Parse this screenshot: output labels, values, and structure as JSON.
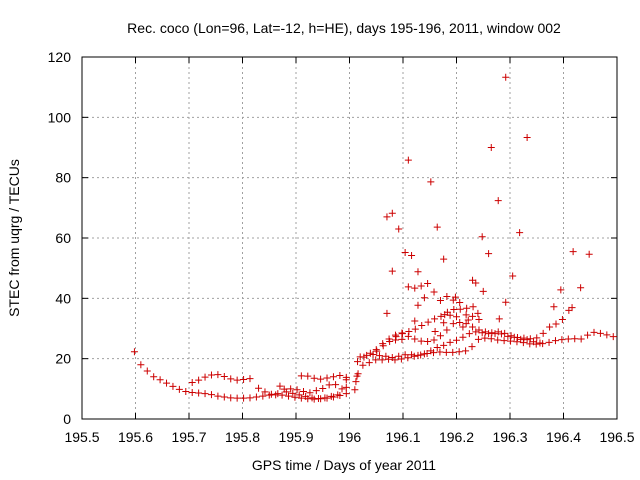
{
  "chart_data": {
    "type": "scatter",
    "title": "Rec. coco (Lon=96, Lat=-12, h=HE), days 195-196, 2011, window 002",
    "xlabel": "GPS time / Days of year 2011",
    "ylabel": "STEC from uqrg / TECUs",
    "xlim": [
      195.5,
      196.5
    ],
    "ylim": [
      0,
      120
    ],
    "xticks": [
      195.5,
      195.6,
      195.7,
      195.8,
      195.9,
      196,
      196.1,
      196.2,
      196.3,
      196.4,
      196.5
    ],
    "xtick_labels": [
      "195.5",
      "195.6",
      "195.7",
      "195.8",
      "195.9",
      "196",
      "196.1",
      "196.2",
      "196.3",
      "196.4",
      "196.5"
    ],
    "yticks": [
      0,
      20,
      40,
      60,
      80,
      100,
      120
    ],
    "ytick_labels": [
      "0",
      "20",
      "40",
      "60",
      "80",
      "100",
      "120"
    ],
    "grid": true,
    "marker": "+",
    "color": "#cc0000",
    "series": [
      {
        "name": "STEC",
        "points": [
          [
            195.598,
            22.3
          ],
          [
            195.61,
            18.0
          ],
          [
            195.622,
            15.9
          ],
          [
            195.634,
            14.0
          ],
          [
            195.646,
            13.0
          ],
          [
            195.658,
            11.9
          ],
          [
            195.67,
            10.8
          ],
          [
            195.682,
            9.8
          ],
          [
            195.694,
            9.1
          ],
          [
            195.706,
            8.8
          ],
          [
            195.718,
            8.6
          ],
          [
            195.73,
            8.4
          ],
          [
            195.742,
            8.1
          ],
          [
            195.754,
            7.6
          ],
          [
            195.766,
            7.3
          ],
          [
            195.778,
            7.0
          ],
          [
            195.79,
            6.9
          ],
          [
            195.802,
            6.9
          ],
          [
            195.814,
            7.0
          ],
          [
            195.826,
            7.3
          ],
          [
            195.838,
            7.6
          ],
          [
            195.85,
            7.9
          ],
          [
            195.862,
            8.0
          ],
          [
            195.874,
            7.9
          ],
          [
            195.886,
            7.6
          ],
          [
            195.898,
            7.2
          ],
          [
            195.91,
            6.9
          ],
          [
            195.922,
            6.7
          ],
          [
            195.934,
            6.6
          ],
          [
            195.946,
            6.7
          ],
          [
            195.958,
            6.9
          ],
          [
            195.97,
            7.3
          ],
          [
            195.982,
            7.8
          ],
          [
            195.706,
            12.1
          ],
          [
            195.718,
            12.9
          ],
          [
            195.73,
            13.9
          ],
          [
            195.742,
            14.6
          ],
          [
            195.754,
            14.7
          ],
          [
            195.766,
            14.1
          ],
          [
            195.778,
            13.3
          ],
          [
            195.79,
            12.9
          ],
          [
            195.802,
            13.1
          ],
          [
            195.814,
            13.4
          ],
          [
            195.83,
            10.2
          ],
          [
            195.842,
            9.0
          ],
          [
            195.854,
            8.2
          ],
          [
            195.866,
            8.4
          ],
          [
            195.878,
            9.9
          ],
          [
            195.89,
            10.0
          ],
          [
            195.902,
            9.7
          ],
          [
            195.914,
            9.1
          ],
          [
            195.926,
            8.7
          ],
          [
            195.938,
            9.4
          ],
          [
            195.95,
            10.1
          ],
          [
            195.962,
            11.3
          ],
          [
            195.974,
            11.4
          ],
          [
            195.986,
            10.0
          ],
          [
            195.87,
            10.9
          ],
          [
            195.882,
            9.0
          ],
          [
            195.894,
            8.5
          ],
          [
            195.906,
            8.0
          ],
          [
            195.918,
            7.5
          ],
          [
            195.93,
            7.0
          ],
          [
            195.942,
            6.8
          ],
          [
            195.954,
            7.0
          ],
          [
            195.966,
            7.5
          ],
          [
            195.978,
            8.0
          ],
          [
            195.91,
            14.3
          ],
          [
            195.922,
            14.2
          ],
          [
            195.934,
            13.5
          ],
          [
            195.946,
            13.2
          ],
          [
            195.958,
            13.6
          ],
          [
            195.97,
            14.0
          ],
          [
            195.982,
            14.4
          ],
          [
            195.994,
            13.8
          ],
          [
            195.994,
            13.0
          ],
          [
            195.994,
            10.5
          ],
          [
            195.994,
            8.4
          ],
          [
            196.01,
            9.7
          ],
          [
            196.012,
            12.4
          ],
          [
            196.014,
            14.2
          ],
          [
            196.016,
            15.0
          ],
          [
            196.025,
            17.8
          ],
          [
            196.037,
            18.7
          ],
          [
            196.049,
            19.6
          ],
          [
            196.061,
            19.6
          ],
          [
            196.073,
            19.8
          ],
          [
            196.085,
            19.6
          ],
          [
            196.097,
            19.9
          ],
          [
            196.109,
            20.3
          ],
          [
            196.121,
            20.8
          ],
          [
            196.133,
            21.2
          ],
          [
            196.145,
            21.7
          ],
          [
            196.157,
            22.0
          ],
          [
            196.169,
            22.2
          ],
          [
            196.181,
            22.1
          ],
          [
            196.193,
            22.1
          ],
          [
            196.205,
            22.3
          ],
          [
            196.217,
            22.6
          ],
          [
            196.229,
            24.0
          ],
          [
            196.241,
            26.4
          ],
          [
            196.253,
            26.8
          ],
          [
            196.265,
            26.6
          ],
          [
            196.277,
            26.2
          ],
          [
            196.289,
            26.0
          ],
          [
            196.301,
            25.8
          ],
          [
            196.313,
            25.6
          ],
          [
            196.325,
            25.3
          ],
          [
            196.337,
            24.9
          ],
          [
            196.349,
            24.8
          ],
          [
            196.361,
            25.0
          ],
          [
            196.373,
            25.4
          ],
          [
            196.385,
            26.0
          ],
          [
            196.397,
            26.3
          ],
          [
            196.409,
            26.5
          ],
          [
            196.421,
            26.6
          ],
          [
            196.433,
            26.5
          ],
          [
            196.445,
            27.8
          ],
          [
            196.457,
            28.7
          ],
          [
            196.469,
            28.4
          ],
          [
            196.481,
            27.9
          ],
          [
            196.493,
            27.3
          ],
          [
            196.015,
            19.0
          ],
          [
            196.027,
            20.5
          ],
          [
            196.039,
            21.8
          ],
          [
            196.051,
            22.5
          ],
          [
            196.063,
            24.3
          ],
          [
            196.075,
            25.7
          ],
          [
            196.087,
            27.3
          ],
          [
            196.099,
            28.3
          ],
          [
            196.111,
            29.0
          ],
          [
            196.123,
            29.8
          ],
          [
            196.135,
            31.0
          ],
          [
            196.147,
            32.1
          ],
          [
            196.159,
            33.2
          ],
          [
            196.171,
            34.0
          ],
          [
            196.183,
            35.4
          ],
          [
            196.195,
            36.3
          ],
          [
            196.207,
            36.4
          ],
          [
            196.219,
            36.7
          ],
          [
            196.231,
            37.2
          ],
          [
            196.02,
            20.6
          ],
          [
            196.032,
            21.1
          ],
          [
            196.044,
            21.4
          ],
          [
            196.056,
            21.0
          ],
          [
            196.068,
            20.8
          ],
          [
            196.08,
            20.4
          ],
          [
            196.092,
            20.8
          ],
          [
            196.104,
            21.3
          ],
          [
            196.116,
            21.3
          ],
          [
            196.128,
            21.1
          ],
          [
            196.14,
            21.6
          ],
          [
            196.152,
            22.6
          ],
          [
            196.164,
            23.7
          ],
          [
            196.176,
            24.4
          ],
          [
            196.188,
            25.4
          ],
          [
            196.2,
            26.1
          ],
          [
            196.212,
            27.1
          ],
          [
            196.224,
            28.3
          ],
          [
            196.236,
            28.9
          ],
          [
            196.248,
            28.6
          ],
          [
            196.26,
            28.3
          ],
          [
            196.272,
            28.3
          ],
          [
            196.284,
            28.2
          ],
          [
            196.296,
            27.4
          ],
          [
            196.308,
            27.1
          ],
          [
            196.32,
            26.4
          ],
          [
            196.332,
            26.3
          ],
          [
            196.344,
            25.6
          ],
          [
            196.356,
            25.2
          ],
          [
            196.05,
            23.0
          ],
          [
            196.062,
            25.0
          ],
          [
            196.074,
            26.5
          ],
          [
            196.086,
            27.8
          ],
          [
            196.098,
            28.5
          ],
          [
            196.11,
            27.4
          ],
          [
            196.122,
            26.5
          ],
          [
            196.134,
            25.8
          ],
          [
            196.146,
            25.7
          ],
          [
            196.158,
            26.2
          ],
          [
            196.17,
            27.6
          ],
          [
            196.182,
            29.5
          ],
          [
            196.194,
            31.6
          ],
          [
            196.206,
            32.0
          ],
          [
            196.218,
            31.6
          ],
          [
            196.23,
            30.5
          ],
          [
            196.242,
            29.5
          ],
          [
            196.254,
            28.9
          ],
          [
            196.266,
            28.6
          ],
          [
            196.278,
            28.9
          ],
          [
            196.29,
            28.4
          ],
          [
            196.302,
            27.6
          ],
          [
            196.314,
            27.0
          ],
          [
            196.326,
            26.8
          ],
          [
            196.338,
            26.6
          ],
          [
            196.35,
            26.9
          ],
          [
            196.362,
            28.4
          ],
          [
            196.374,
            30.5
          ],
          [
            196.386,
            31.5
          ],
          [
            196.398,
            33.0
          ],
          [
            196.41,
            36.0
          ],
          [
            196.07,
            35.0
          ],
          [
            196.08,
            49.0
          ],
          [
            196.086,
            26.2
          ],
          [
            196.098,
            26.4
          ],
          [
            196.07,
            67.0
          ],
          [
            196.08,
            68.2
          ],
          [
            196.092,
            63.0
          ],
          [
            196.104,
            55.2
          ],
          [
            196.116,
            54.2
          ],
          [
            196.128,
            48.8
          ],
          [
            196.11,
            43.8
          ],
          [
            196.122,
            43.4
          ],
          [
            196.134,
            44.1
          ],
          [
            196.146,
            44.9
          ],
          [
            196.158,
            42.1
          ],
          [
            196.17,
            39.3
          ],
          [
            196.182,
            40.6
          ],
          [
            196.194,
            39.4
          ],
          [
            196.206,
            38.6
          ],
          [
            196.218,
            34.5
          ],
          [
            196.23,
            34.0
          ],
          [
            196.242,
            33.0
          ],
          [
            196.11,
            85.8
          ],
          [
            196.152,
            78.6
          ],
          [
            196.164,
            63.6
          ],
          [
            196.176,
            53.0
          ],
          [
            196.198,
            40.4
          ],
          [
            196.23,
            46.0
          ],
          [
            196.248,
            60.4
          ],
          [
            196.26,
            54.8
          ],
          [
            196.265,
            90.0
          ],
          [
            196.278,
            72.4
          ],
          [
            196.292,
            113.3
          ],
          [
            196.305,
            47.4
          ],
          [
            196.318,
            61.8
          ],
          [
            196.332,
            93.3
          ],
          [
            196.382,
            37.2
          ],
          [
            196.395,
            42.8
          ],
          [
            196.418,
            55.5
          ],
          [
            196.432,
            43.5
          ],
          [
            196.448,
            54.6
          ],
          [
            196.416,
            36.9
          ],
          [
            196.292,
            38.7
          ],
          [
            196.28,
            33.2
          ],
          [
            196.25,
            42.3
          ],
          [
            196.236,
            45.1
          ],
          [
            196.24,
            35.0
          ],
          [
            196.222,
            32.8
          ],
          [
            196.212,
            30.5
          ],
          [
            196.2,
            33.9
          ],
          [
            196.188,
            34.4
          ],
          [
            196.178,
            34.6
          ],
          [
            196.14,
            40.2
          ],
          [
            196.128,
            37.7
          ],
          [
            196.122,
            32.5
          ],
          [
            196.16,
            29.0
          ],
          [
            196.176,
            31.9
          ]
        ]
      }
    ]
  }
}
